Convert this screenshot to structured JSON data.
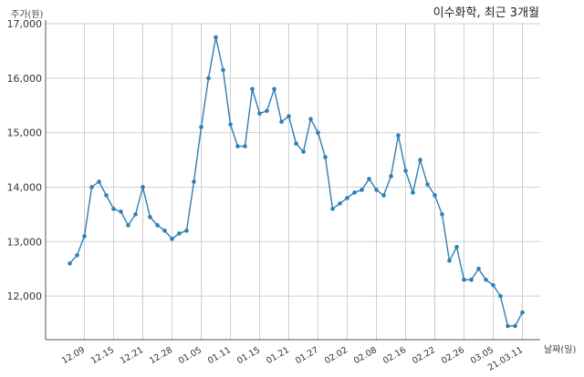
{
  "chart_data": {
    "type": "line",
    "title": "이수화학, 최근 3개월",
    "ylabel": "주가(원)",
    "xlabel": "날짜(일)",
    "ylim": [
      11200,
      17000
    ],
    "yticks": [
      12000,
      13000,
      14000,
      15000,
      16000,
      17000
    ],
    "ytick_labels": [
      "12,000",
      "13,000",
      "14,000",
      "15,000",
      "16,000",
      "17,000"
    ],
    "grid": true,
    "color": "#2e7fb5",
    "xtick_labels": [
      "12.09",
      "12.15",
      "12.21",
      "12.28",
      "01.05",
      "01.11",
      "01.15",
      "01.21",
      "01.27",
      "02.02",
      "02.08",
      "02.16",
      "02.22",
      "02.26",
      "03.05",
      "21.03.11"
    ],
    "xtick_index": [
      2,
      6,
      10,
      14,
      18,
      22,
      26,
      30,
      34,
      38,
      42,
      46,
      50,
      54,
      58,
      62
    ],
    "values": [
      12600,
      12750,
      13100,
      14000,
      14100,
      13850,
      13600,
      13550,
      13300,
      13500,
      14000,
      13450,
      13300,
      13200,
      13050,
      13150,
      13200,
      14100,
      15100,
      16000,
      16750,
      16150,
      15150,
      14750,
      14750,
      15800,
      15350,
      15400,
      15800,
      15200,
      15300,
      14800,
      14650,
      15250,
      15000,
      14550,
      13600,
      13700,
      13800,
      13900,
      13950,
      14150,
      13950,
      13850,
      14200,
      14950,
      14300,
      13900,
      14500,
      14050,
      13850,
      13500,
      12650,
      12900,
      12300,
      12300,
      12500,
      12300,
      12200,
      12000,
      11450,
      11450,
      11700
    ]
  }
}
